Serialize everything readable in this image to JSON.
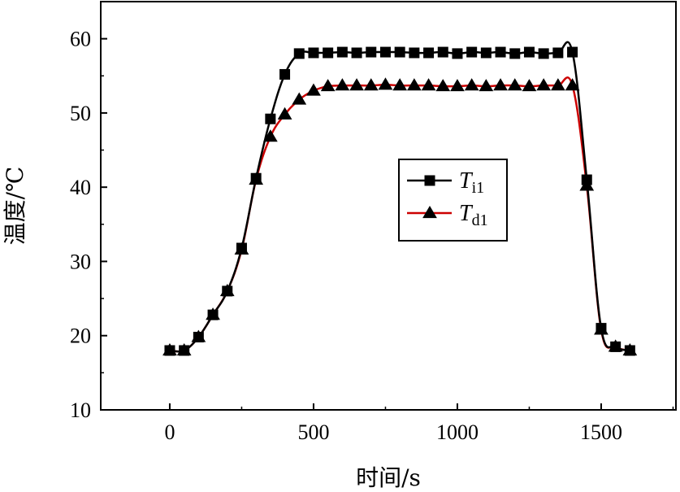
{
  "chart_data": {
    "type": "line",
    "xlabel": "时间/s",
    "ylabel": "温度/℃",
    "xlim": [
      -240,
      1760
    ],
    "ylim": [
      10,
      65
    ],
    "xticks": [
      0,
      500,
      1000,
      1500
    ],
    "yticks": [
      10,
      20,
      30,
      40,
      50,
      60
    ],
    "grid": false,
    "legend_position": "center-right",
    "series": [
      {
        "name": "T_i1",
        "legend_main": "T",
        "legend_sub": "i1",
        "color": "#000000",
        "marker": "square",
        "x": [
          0,
          50,
          100,
          150,
          200,
          250,
          300,
          350,
          400,
          450,
          500,
          550,
          600,
          650,
          700,
          750,
          800,
          850,
          900,
          950,
          1000,
          1050,
          1100,
          1150,
          1200,
          1250,
          1300,
          1350,
          1400,
          1450,
          1500,
          1550,
          1600
        ],
        "y": [
          18,
          18,
          19.8,
          22.8,
          26,
          31.8,
          41.2,
          49.2,
          55.2,
          58,
          58.1,
          58.1,
          58.2,
          58.1,
          58.2,
          58.2,
          58.2,
          58.1,
          58.1,
          58.2,
          58.0,
          58.2,
          58.1,
          58.2,
          58.0,
          58.2,
          58.0,
          58.1,
          58.2,
          41,
          21,
          18.5,
          18
        ]
      },
      {
        "name": "T_d1",
        "legend_main": "T",
        "legend_sub": "d1",
        "color": "#cc0000",
        "marker": "triangle",
        "x": [
          0,
          50,
          100,
          150,
          200,
          250,
          300,
          350,
          400,
          450,
          500,
          550,
          600,
          650,
          700,
          750,
          800,
          850,
          900,
          950,
          1000,
          1050,
          1100,
          1150,
          1200,
          1250,
          1300,
          1350,
          1400,
          1450,
          1500,
          1550,
          1600
        ],
        "y": [
          18,
          18,
          19.8,
          22.8,
          26,
          31.6,
          41,
          46.8,
          49.8,
          51.8,
          53,
          53.6,
          53.7,
          53.7,
          53.7,
          53.8,
          53.7,
          53.7,
          53.7,
          53.6,
          53.6,
          53.7,
          53.6,
          53.7,
          53.7,
          53.6,
          53.7,
          53.7,
          53.7,
          40.2,
          20.8,
          18.5,
          18
        ]
      }
    ]
  }
}
